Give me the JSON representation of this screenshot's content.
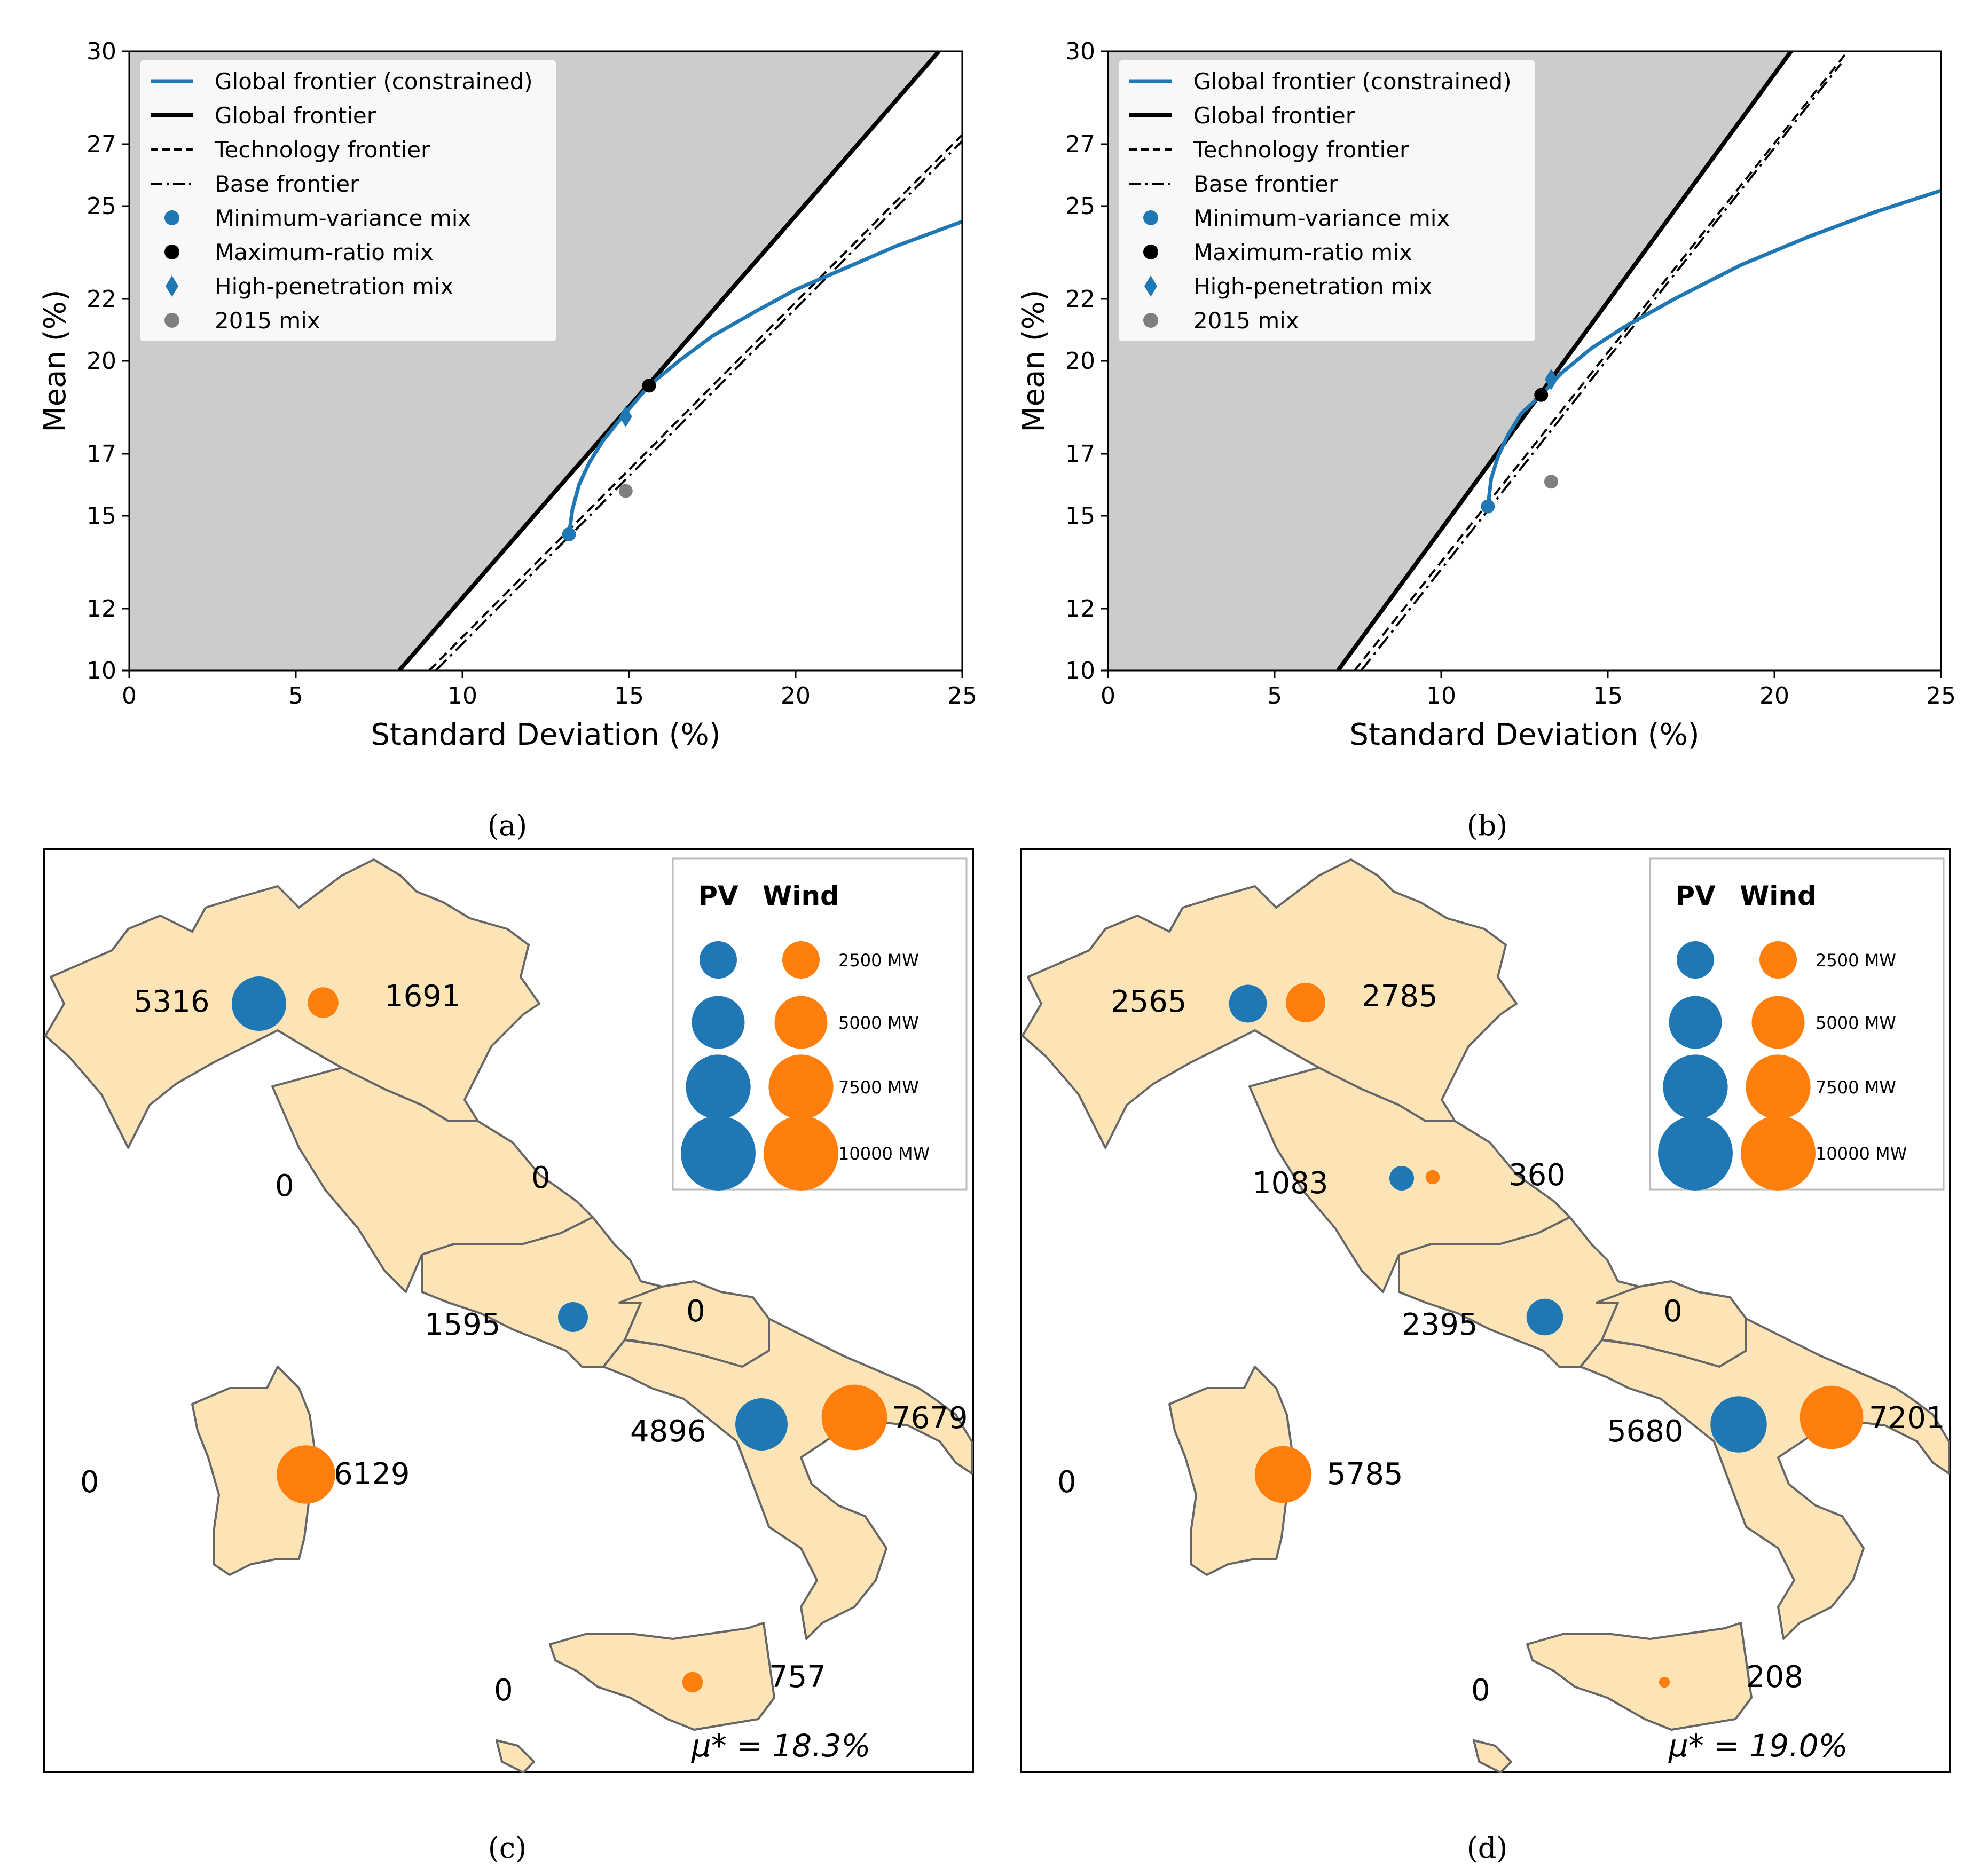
{
  "chart_data": [
    {
      "id": "a",
      "type": "line",
      "panel_label": "(a)",
      "xlabel": "Standard Deviation (%)",
      "ylabel": "Mean (%)",
      "xlim": [
        0,
        25
      ],
      "ylim": [
        10,
        30
      ],
      "xticks": [
        0,
        5,
        10,
        15,
        20,
        25
      ],
      "yticks": [
        10,
        12,
        15,
        17,
        20,
        22,
        25,
        27,
        30
      ],
      "legend": [
        {
          "label": "Global frontier (constrained)",
          "style": "blue-line"
        },
        {
          "label": "Global frontier",
          "style": "black-line"
        },
        {
          "label": "Technology frontier",
          "style": "dashed"
        },
        {
          "label": "Base frontier",
          "style": "dashdot"
        },
        {
          "label": "Minimum-variance mix",
          "style": "blue-dot"
        },
        {
          "label": "Maximum-ratio mix",
          "style": "black-dot"
        },
        {
          "label": "High-penetration mix",
          "style": "blue-diamond"
        },
        {
          "label": "2015 mix",
          "style": "gray-dot"
        }
      ],
      "series": [
        {
          "name": "Global frontier (constrained)",
          "x": [
            13.2,
            13.3,
            13.5,
            13.8,
            14.2,
            14.8,
            15.6,
            16.5,
            17.5,
            18.8,
            20.0,
            21.5,
            23.0,
            25.0
          ],
          "y": [
            14.4,
            15.2,
            16.0,
            16.7,
            17.4,
            18.2,
            19.2,
            20.0,
            20.8,
            21.6,
            22.3,
            23.0,
            23.7,
            24.5
          ]
        },
        {
          "name": "Global frontier",
          "x": [
            8.1,
            24.3
          ],
          "y": [
            10.0,
            30.0
          ]
        },
        {
          "name": "Technology frontier",
          "x": [
            9.0,
            25.0
          ],
          "y": [
            10.0,
            27.3
          ]
        },
        {
          "name": "Base frontier",
          "x": [
            9.2,
            25.0
          ],
          "y": [
            10.0,
            27.1
          ]
        }
      ],
      "points": [
        {
          "name": "Minimum-variance mix",
          "x": 13.2,
          "y": 14.4
        },
        {
          "name": "Maximum-ratio mix",
          "x": 15.6,
          "y": 19.2
        },
        {
          "name": "High-penetration mix",
          "x": 14.9,
          "y": 18.2
        },
        {
          "name": "2015 mix",
          "x": 14.9,
          "y": 15.8
        }
      ],
      "shaded_region": "above global frontier"
    },
    {
      "id": "b",
      "type": "line",
      "panel_label": "(b)",
      "xlabel": "Standard Deviation (%)",
      "ylabel": "Mean (%)",
      "xlim": [
        0,
        25
      ],
      "ylim": [
        10,
        30
      ],
      "xticks": [
        0,
        5,
        10,
        15,
        20,
        25
      ],
      "yticks": [
        10,
        12,
        15,
        17,
        20,
        22,
        25,
        27,
        30
      ],
      "legend": [
        {
          "label": "Global frontier (constrained)",
          "style": "blue-line"
        },
        {
          "label": "Global frontier",
          "style": "black-line"
        },
        {
          "label": "Technology frontier",
          "style": "dashed"
        },
        {
          "label": "Base frontier",
          "style": "dashdot"
        },
        {
          "label": "Minimum-variance mix",
          "style": "blue-dot"
        },
        {
          "label": "Maximum-ratio mix",
          "style": "black-dot"
        },
        {
          "label": "High-penetration mix",
          "style": "blue-diamond"
        },
        {
          "label": "2015 mix",
          "style": "gray-dot"
        }
      ],
      "series": [
        {
          "name": "Global frontier (constrained)",
          "x": [
            11.4,
            11.5,
            11.7,
            12.0,
            12.4,
            13.0,
            13.6,
            14.5,
            15.5,
            17.0,
            19.0,
            21.0,
            23.0,
            25.0
          ],
          "y": [
            15.3,
            16.2,
            16.9,
            17.6,
            18.3,
            18.9,
            19.6,
            20.4,
            21.1,
            22.0,
            23.1,
            24.0,
            24.8,
            25.5
          ]
        },
        {
          "name": "Global frontier",
          "x": [
            6.9,
            20.5
          ],
          "y": [
            10.0,
            30.0
          ]
        },
        {
          "name": "Technology frontier",
          "x": [
            7.4,
            22.2
          ],
          "y": [
            10.0,
            30.0
          ]
        },
        {
          "name": "Base frontier",
          "x": [
            7.6,
            22.0
          ],
          "y": [
            10.0,
            29.6
          ]
        }
      ],
      "points": [
        {
          "name": "Minimum-variance mix",
          "x": 11.4,
          "y": 15.3
        },
        {
          "name": "Maximum-ratio mix",
          "x": 13.0,
          "y": 18.9
        },
        {
          "name": "High-penetration mix",
          "x": 13.3,
          "y": 19.4
        },
        {
          "name": "2015 mix",
          "x": 13.3,
          "y": 16.1
        }
      ],
      "shaded_region": "above global frontier"
    },
    {
      "id": "c",
      "type": "map",
      "panel_label": "(c)",
      "legend": {
        "pv_label": "PV",
        "wind_label": "Wind",
        "sizes_mw": [
          2500,
          5000,
          7500,
          10000
        ],
        "size_labels": [
          "2500 MW",
          "5000 MW",
          "7500 MW",
          "10000 MW"
        ]
      },
      "annotation": "μ* = 18.3%",
      "colors": {
        "pv": "#1f77b4",
        "wind": "#ff7f0e",
        "land": "#fde4b6",
        "border": "#666666"
      },
      "regions": [
        {
          "region": "north",
          "pv": 5316,
          "wind": 1691,
          "pv_label": "5316",
          "wind_label": "1691"
        },
        {
          "region": "centre-north",
          "pv": 0,
          "wind": 0,
          "zero_label": "0"
        },
        {
          "region": "centre-north-west",
          "zero_label": "0"
        },
        {
          "region": "centre-south",
          "pv": 1595,
          "wind": 0,
          "pv_label": "1595"
        },
        {
          "region": "centre-south-east",
          "zero_label": "0"
        },
        {
          "region": "south",
          "pv": 4896,
          "wind": 7679,
          "pv_label": "4896",
          "wind_label": "7679"
        },
        {
          "region": "sardinia",
          "pv": 0,
          "wind": 6129,
          "wind_label": "6129",
          "zero_label": "0"
        },
        {
          "region": "sicily",
          "pv": 0,
          "wind": 757,
          "wind_label": "757",
          "zero_label": "0"
        }
      ]
    },
    {
      "id": "d",
      "type": "map",
      "panel_label": "(d)",
      "legend": {
        "pv_label": "PV",
        "wind_label": "Wind",
        "sizes_mw": [
          2500,
          5000,
          7500,
          10000
        ],
        "size_labels": [
          "2500 MW",
          "5000 MW",
          "7500 MW",
          "10000 MW"
        ]
      },
      "annotation": "μ* = 19.0%",
      "colors": {
        "pv": "#1f77b4",
        "wind": "#ff7f0e",
        "land": "#fde4b6",
        "border": "#666666"
      },
      "regions": [
        {
          "region": "north",
          "pv": 2565,
          "wind": 2785,
          "pv_label": "2565",
          "wind_label": "2785"
        },
        {
          "region": "centre-north",
          "pv": 1083,
          "wind": 360,
          "pv_label": "1083",
          "wind_label": "360"
        },
        {
          "region": "centre-south",
          "pv": 2395,
          "wind": 0,
          "pv_label": "2395"
        },
        {
          "region": "centre-south-east",
          "zero_label": "0"
        },
        {
          "region": "south",
          "pv": 5680,
          "wind": 7201,
          "pv_label": "5680",
          "wind_label": "7201"
        },
        {
          "region": "sardinia",
          "pv": 0,
          "wind": 5785,
          "wind_label": "5785",
          "zero_label": "0"
        },
        {
          "region": "sicily",
          "pv": 0,
          "wind": 208,
          "wind_label": "208",
          "zero_label": "0"
        }
      ]
    }
  ]
}
